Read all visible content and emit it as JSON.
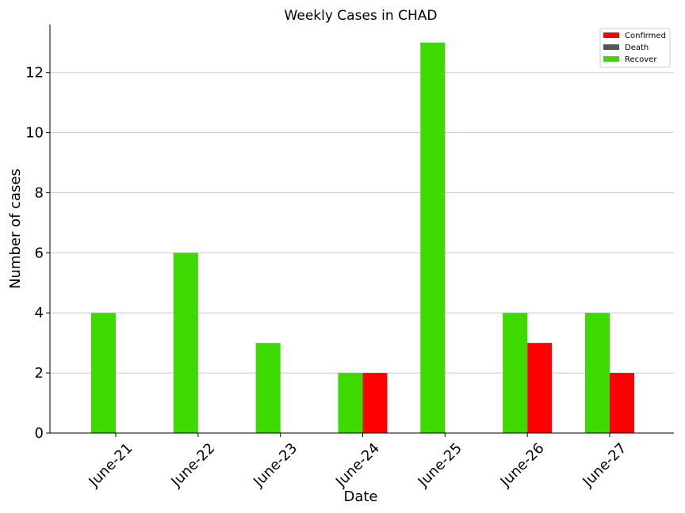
{
  "chart_data": {
    "type": "bar",
    "title": "Weekly Cases in CHAD",
    "xlabel": "Date",
    "ylabel": "Number of cases",
    "categories": [
      "June-21",
      "June-22",
      "June-23",
      "June-24",
      "June-25",
      "June-26",
      "June-27"
    ],
    "series": [
      {
        "name": "Confirmed",
        "color": "#ff0000",
        "values": [
          0,
          0,
          0,
          2,
          0,
          3,
          2
        ]
      },
      {
        "name": "Death",
        "color": "#555555",
        "values": [
          0,
          0,
          0,
          0,
          0,
          0,
          0
        ]
      },
      {
        "name": "Recover",
        "color": "#3dd900",
        "values": [
          4,
          6,
          3,
          2,
          13,
          4,
          4
        ]
      }
    ],
    "ylim": [
      0,
      13.6
    ],
    "yticks": [
      0,
      2,
      4,
      6,
      8,
      10,
      12
    ],
    "grid": "horizontal",
    "legend_position": "top-right"
  }
}
